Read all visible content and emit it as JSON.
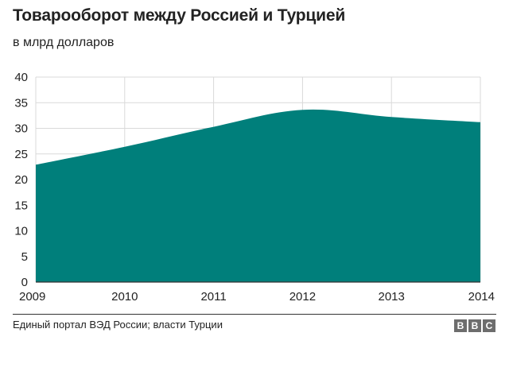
{
  "title": "Товарооборот между Россией и Турцией",
  "subtitle": "в млрд долларов",
  "source": "Единый портал ВЭД России; власти Турции",
  "logo": [
    "B",
    "B",
    "C"
  ],
  "colors": {
    "fill": "#007f7b",
    "grid": "#d9d9d9",
    "axis": "#333333",
    "text": "#222222"
  },
  "chart_data": {
    "type": "area",
    "title": "Товарооборот между Россией и Турцией",
    "subtitle": "в млрд долларов",
    "x": [
      2009,
      2010,
      2011,
      2012,
      2013,
      2014
    ],
    "x_tick_labels": [
      "2009",
      "2010",
      "2011",
      "2012",
      "2013",
      "2014"
    ],
    "series": [
      {
        "values": [
          22.9,
          26.4,
          30.3,
          33.6,
          32.2,
          31.2
        ]
      }
    ],
    "y_ticks": [
      0,
      5,
      10,
      15,
      20,
      25,
      30,
      35,
      40
    ],
    "ylim": [
      0,
      40
    ],
    "xlim": [
      2009,
      2014
    ],
    "grid": true,
    "xlabel": "",
    "ylabel": ""
  }
}
